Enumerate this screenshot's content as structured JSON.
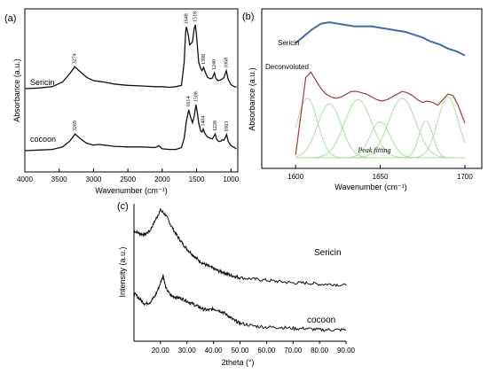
{
  "panels": {
    "a": {
      "panel_label": "(a)",
      "ylabel": "Absorbance (a.u.)",
      "xlabel": "Wavenumber (cm⁻¹)",
      "xticks": [
        "4000",
        "3500",
        "3000",
        "2500",
        "2000",
        "1500",
        "1000"
      ],
      "trace_labels": [
        "Sericin",
        "cocoon"
      ],
      "peak_labels_sericin": [
        "3274",
        "1648",
        "1518",
        "1398",
        "1240",
        "1068"
      ],
      "peak_labels_cocoon": [
        "3269",
        "1614",
        "1508",
        "1404",
        "1228",
        "1063"
      ]
    },
    "b": {
      "panel_label": "(b)",
      "ylabel": "Absorbance (a.u.)",
      "xlabel": "Wavenumber (cm⁻¹)",
      "xticks": [
        "1600",
        "1650",
        "1700"
      ],
      "trace_labels": [
        "Sericin",
        "Deconvoluted"
      ],
      "annotation": "Peak fitting"
    },
    "c": {
      "panel_label": "(c)",
      "ylabel": "Intensity (a.u.)",
      "xlabel": "2theta (°)",
      "xticks": [
        "20.00",
        "30.00",
        "40.00",
        "50.00",
        "60.00",
        "70.00",
        "80.00",
        "90.00"
      ],
      "trace_labels": [
        "Sericin",
        "cocoon"
      ]
    }
  },
  "colors": {
    "axis": "#000000",
    "trace": "#111111",
    "sericin_b": "#3d6bb5",
    "deconvoluted_b": "#a23c3c",
    "fit_peaks": "#a8e2a0"
  },
  "chart_data": [
    {
      "type": "line",
      "panel": "a",
      "xlabel": "Wavenumber (cm⁻¹)",
      "ylabel": "Absorbance (a.u.)",
      "xlim": [
        4000,
        900
      ],
      "x_reversed": true,
      "grid": false,
      "series": [
        {
          "name": "Sericin",
          "x": [
            4000,
            3800,
            3600,
            3450,
            3350,
            3300,
            3274,
            3200,
            3100,
            3000,
            2920,
            2850,
            2700,
            2500,
            2300,
            2100,
            2000,
            1900,
            1800,
            1720,
            1680,
            1660,
            1648,
            1620,
            1600,
            1560,
            1535,
            1518,
            1500,
            1470,
            1440,
            1420,
            1398,
            1370,
            1340,
            1300,
            1270,
            1240,
            1220,
            1190,
            1150,
            1120,
            1100,
            1068,
            1040,
            1000,
            950,
            920
          ],
          "y": [
            0.0,
            0.01,
            0.03,
            0.1,
            0.22,
            0.29,
            0.33,
            0.26,
            0.17,
            0.12,
            0.11,
            0.1,
            0.07,
            0.05,
            0.04,
            0.03,
            0.03,
            0.02,
            0.03,
            0.05,
            0.4,
            0.85,
            0.93,
            0.8,
            0.66,
            0.7,
            0.9,
            0.96,
            0.8,
            0.4,
            0.3,
            0.27,
            0.32,
            0.24,
            0.17,
            0.15,
            0.16,
            0.24,
            0.16,
            0.12,
            0.13,
            0.15,
            0.17,
            0.27,
            0.14,
            0.06,
            0.03,
            0.02
          ]
        },
        {
          "name": "cocoon",
          "x": [
            4000,
            3800,
            3600,
            3450,
            3350,
            3300,
            3269,
            3200,
            3100,
            3000,
            2920,
            2850,
            2700,
            2500,
            2300,
            2100,
            2050,
            2000,
            1900,
            1800,
            1720,
            1680,
            1650,
            1614,
            1590,
            1560,
            1535,
            1508,
            1490,
            1470,
            1440,
            1420,
            1404,
            1380,
            1340,
            1300,
            1270,
            1228,
            1210,
            1180,
            1150,
            1120,
            1100,
            1063,
            1040,
            1000,
            950,
            920
          ],
          "y": [
            0.0,
            0.01,
            0.02,
            0.06,
            0.15,
            0.22,
            0.27,
            0.2,
            0.12,
            0.09,
            0.1,
            0.09,
            0.07,
            0.06,
            0.06,
            0.05,
            0.08,
            0.03,
            0.02,
            0.02,
            0.05,
            0.2,
            0.46,
            0.66,
            0.55,
            0.45,
            0.55,
            0.74,
            0.62,
            0.45,
            0.32,
            0.3,
            0.35,
            0.28,
            0.22,
            0.2,
            0.19,
            0.27,
            0.19,
            0.15,
            0.15,
            0.18,
            0.17,
            0.26,
            0.15,
            0.08,
            0.05,
            0.03
          ]
        }
      ]
    },
    {
      "type": "line",
      "panel": "b",
      "xlabel": "Wavenumber (cm⁻¹)",
      "ylabel": "Absorbance (a.u.)",
      "xlim": [
        1580,
        1710
      ],
      "grid": false,
      "series": [
        {
          "name": "Sericin",
          "x": [
            1600,
            1605,
            1610,
            1615,
            1620,
            1625,
            1630,
            1635,
            1640,
            1645,
            1650,
            1655,
            1660,
            1665,
            1670,
            1675,
            1680,
            1685,
            1690,
            1695,
            1700
          ],
          "y": [
            0.83,
            0.88,
            0.93,
            0.97,
            0.98,
            0.97,
            0.96,
            0.95,
            0.95,
            0.95,
            0.94,
            0.93,
            0.92,
            0.91,
            0.89,
            0.87,
            0.84,
            0.82,
            0.79,
            0.77,
            0.74
          ]
        },
        {
          "name": "Deconvoluted",
          "x": [
            1600,
            1603,
            1606,
            1609,
            1612,
            1615,
            1618,
            1621,
            1624,
            1627,
            1630,
            1633,
            1636,
            1639,
            1642,
            1645,
            1648,
            1651,
            1654,
            1657,
            1660,
            1663,
            1666,
            1669,
            1672,
            1675,
            1678,
            1681,
            1684,
            1687,
            1690,
            1693,
            1696,
            1700
          ],
          "y": [
            0.02,
            0.3,
            0.58,
            0.62,
            0.56,
            0.5,
            0.46,
            0.44,
            0.43,
            0.44,
            0.46,
            0.48,
            0.48,
            0.47,
            0.46,
            0.44,
            0.42,
            0.41,
            0.42,
            0.44,
            0.46,
            0.48,
            0.47,
            0.45,
            0.42,
            0.4,
            0.41,
            0.4,
            0.38,
            0.42,
            0.46,
            0.45,
            0.38,
            0.25
          ]
        }
      ],
      "fit_peaks": [
        {
          "center": 1607,
          "height": 0.43,
          "width": 6
        },
        {
          "center": 1620,
          "height": 0.39,
          "width": 7
        },
        {
          "center": 1637,
          "height": 0.42,
          "width": 8
        },
        {
          "center": 1650,
          "height": 0.26,
          "width": 6
        },
        {
          "center": 1663,
          "height": 0.43,
          "width": 8
        },
        {
          "center": 1677,
          "height": 0.27,
          "width": 4
        },
        {
          "center": 1690,
          "height": 0.44,
          "width": 6
        }
      ]
    },
    {
      "type": "line",
      "panel": "c",
      "xlabel": "2theta (°)",
      "ylabel": "Intensity (a.u.)",
      "xlim": [
        10,
        90
      ],
      "grid": false,
      "series": [
        {
          "name": "Sericin",
          "x": [
            10,
            12,
            14,
            16,
            18,
            20,
            22,
            24,
            26,
            28,
            30,
            32,
            34,
            36,
            38,
            40,
            42,
            44,
            46,
            48,
            50,
            55,
            60,
            65,
            70,
            75,
            80,
            85,
            90
          ],
          "y": [
            0.8,
            0.78,
            0.77,
            0.8,
            0.88,
            0.96,
            0.92,
            0.84,
            0.77,
            0.71,
            0.66,
            0.62,
            0.58,
            0.55,
            0.53,
            0.51,
            0.49,
            0.48,
            0.46,
            0.45,
            0.44,
            0.43,
            0.42,
            0.41,
            0.4,
            0.4,
            0.39,
            0.39,
            0.38
          ]
        },
        {
          "name": "cocoon",
          "x": [
            10,
            12,
            14,
            16,
            18,
            20,
            21,
            22,
            24,
            26,
            28,
            30,
            32,
            34,
            36,
            38,
            40,
            42,
            44,
            46,
            48,
            50,
            55,
            60,
            65,
            70,
            75,
            80,
            85,
            90
          ],
          "y": [
            0.32,
            0.28,
            0.24,
            0.25,
            0.3,
            0.4,
            0.46,
            0.36,
            0.3,
            0.29,
            0.28,
            0.26,
            0.24,
            0.22,
            0.2,
            0.19,
            0.2,
            0.19,
            0.17,
            0.14,
            0.11,
            0.09,
            0.07,
            0.06,
            0.06,
            0.05,
            0.05,
            0.04,
            0.04,
            0.04
          ]
        }
      ]
    }
  ]
}
